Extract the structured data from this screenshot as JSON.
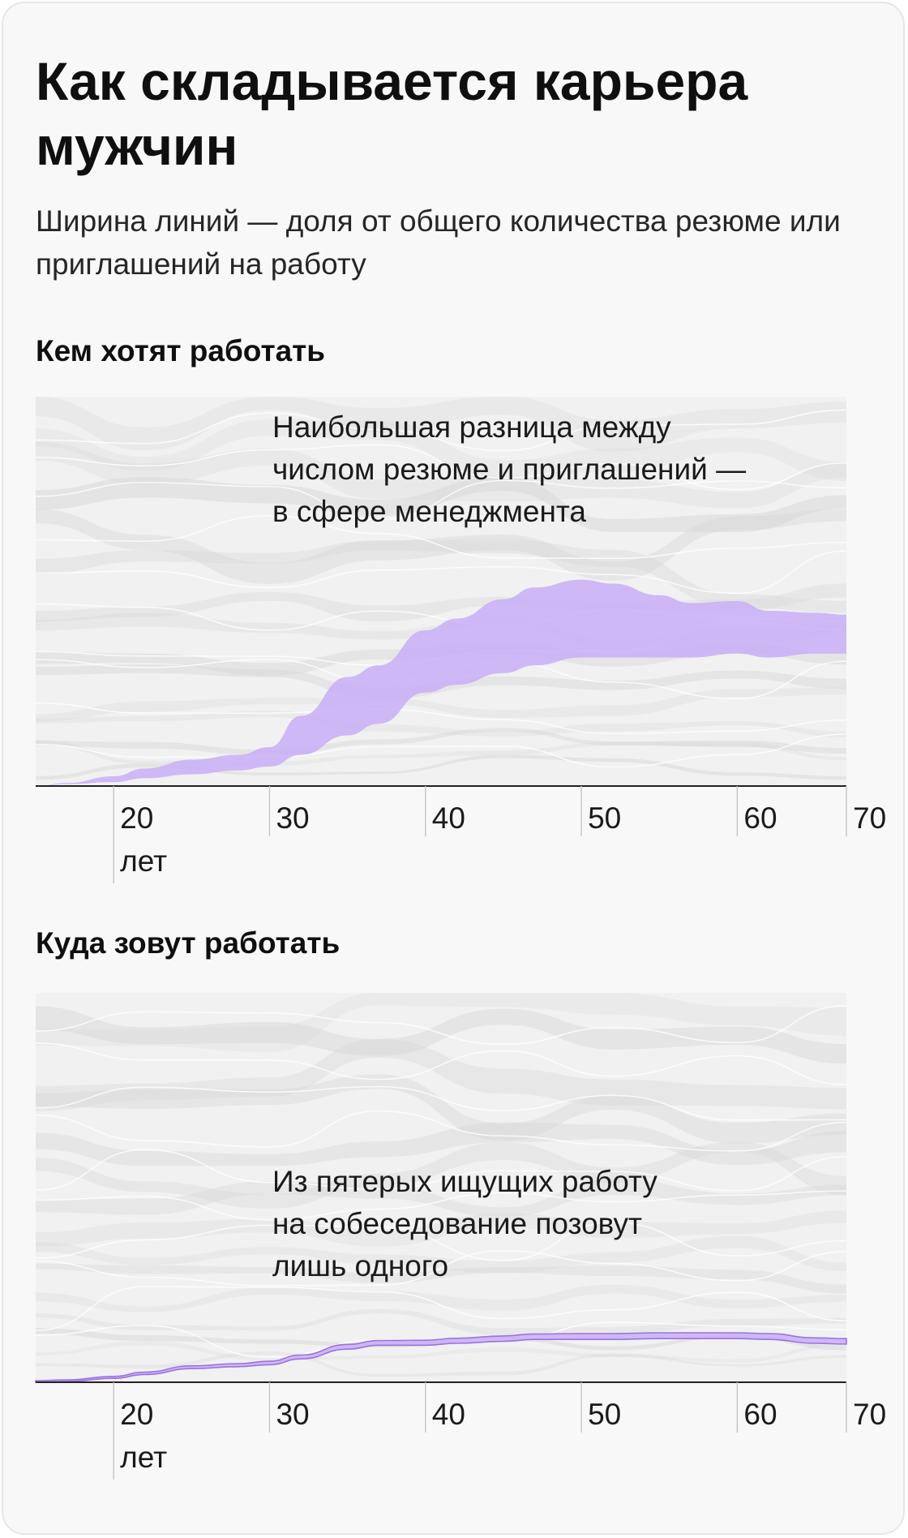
{
  "title": "Как складывается карьера мужчин",
  "subtitle": "Ширина линий — доля от общего количества резюме или приглашений на работу",
  "colors": {
    "highlight": "#c8aef7",
    "highlight_line": "#9a73e0",
    "background_streams": "#d9d9d9",
    "axis": "#222222"
  },
  "chart_data": [
    {
      "type": "area",
      "title": "Кем хотят работать",
      "annotation": [
        "Наибольшая разница между",
        "числом резюме и приглашений —",
        "в сфере менеджмента"
      ],
      "x_ticks": [
        "20",
        "30",
        "40",
        "50",
        "60",
        "70"
      ],
      "x_unit": "лет",
      "xlim": [
        15,
        67
      ],
      "series": [
        {
          "highlighted": true,
          "x": [
            15,
            17,
            20,
            22,
            25,
            28,
            30,
            32,
            35,
            37,
            40,
            42,
            45,
            47,
            50,
            52,
            55,
            57,
            60,
            62,
            65,
            67
          ],
          "share": [
            0.0,
            0.003,
            0.015,
            0.025,
            0.038,
            0.04,
            0.05,
            0.1,
            0.15,
            0.15,
            0.16,
            0.17,
            0.19,
            0.2,
            0.2,
            0.19,
            0.16,
            0.14,
            0.135,
            0.12,
            0.105,
            0.1
          ],
          "offset": [
            0.0,
            0.005,
            0.01,
            0.02,
            0.03,
            0.04,
            0.05,
            0.08,
            0.13,
            0.16,
            0.24,
            0.26,
            0.29,
            0.31,
            0.33,
            0.33,
            0.33,
            0.33,
            0.34,
            0.33,
            0.34,
            0.34
          ]
        }
      ]
    },
    {
      "type": "area",
      "title": "Куда зовут работать",
      "annotation": [
        "Из пятерых ищущих работу",
        "на собеседование позовут",
        "лишь одного"
      ],
      "x_ticks": [
        "20",
        "30",
        "40",
        "50",
        "60",
        "70"
      ],
      "x_unit": "лет",
      "xlim": [
        15,
        67
      ],
      "series": [
        {
          "highlighted": true,
          "x": [
            15,
            17,
            20,
            22,
            25,
            28,
            30,
            32,
            35,
            37,
            40,
            42,
            45,
            47,
            50,
            52,
            55,
            57,
            60,
            62,
            65,
            67
          ],
          "share": [
            0.004,
            0.004,
            0.005,
            0.006,
            0.007,
            0.008,
            0.009,
            0.01,
            0.012,
            0.012,
            0.013,
            0.013,
            0.014,
            0.014,
            0.015,
            0.015,
            0.015,
            0.015,
            0.015,
            0.015,
            0.014,
            0.014
          ],
          "offset": [
            0.0,
            0.002,
            0.01,
            0.02,
            0.035,
            0.04,
            0.045,
            0.06,
            0.085,
            0.095,
            0.095,
            0.1,
            0.105,
            0.11,
            0.11,
            0.11,
            0.112,
            0.112,
            0.112,
            0.11,
            0.1,
            0.098
          ]
        }
      ]
    }
  ]
}
